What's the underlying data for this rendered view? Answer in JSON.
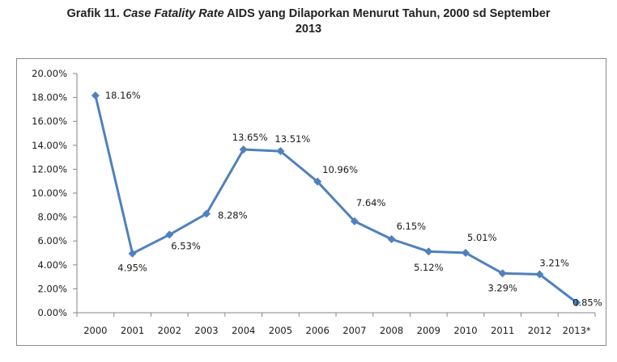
{
  "title": {
    "prefix": "Grafik 11. ",
    "italic": "Case Fatality Rate",
    "rest": " AIDS yang Dilaporkan Menurut Tahun, 2000 sd September",
    "line2": "2013"
  },
  "colors": {
    "line": "#4f81bd",
    "axis": "#868686",
    "frame": "#8a8a8a"
  },
  "chart_data": {
    "type": "line",
    "title": "Grafik 11. Case Fatality Rate AIDS yang Dilaporkan Menurut Tahun, 2000 sd September 2013",
    "xlabel": "",
    "ylabel": "",
    "grid": false,
    "legend": "none",
    "ylim": [
      0,
      20
    ],
    "yticks": [
      "0.00%",
      "2.00%",
      "4.00%",
      "6.00%",
      "8.00%",
      "10.00%",
      "12.00%",
      "14.00%",
      "16.00%",
      "18.00%",
      "20.00%"
    ],
    "categories": [
      "2000",
      "2001",
      "2002",
      "2003",
      "2004",
      "2005",
      "2006",
      "2007",
      "2008",
      "2009",
      "2010",
      "2011",
      "2012",
      "2013*"
    ],
    "series": [
      {
        "values": [
          18.16,
          4.95,
          6.53,
          8.28,
          13.65,
          13.51,
          10.96,
          7.64,
          6.15,
          5.12,
          5.01,
          3.29,
          3.21,
          0.85
        ],
        "labels": [
          "18.16%",
          "4.95%",
          "6.53%",
          "8.28%",
          "13.65%",
          "13.51%",
          "10.96%",
          "7.64%",
          "6.15%",
          "5.12%",
          "5.01%",
          "3.29%",
          "3.21%",
          "0.85%"
        ]
      }
    ]
  }
}
